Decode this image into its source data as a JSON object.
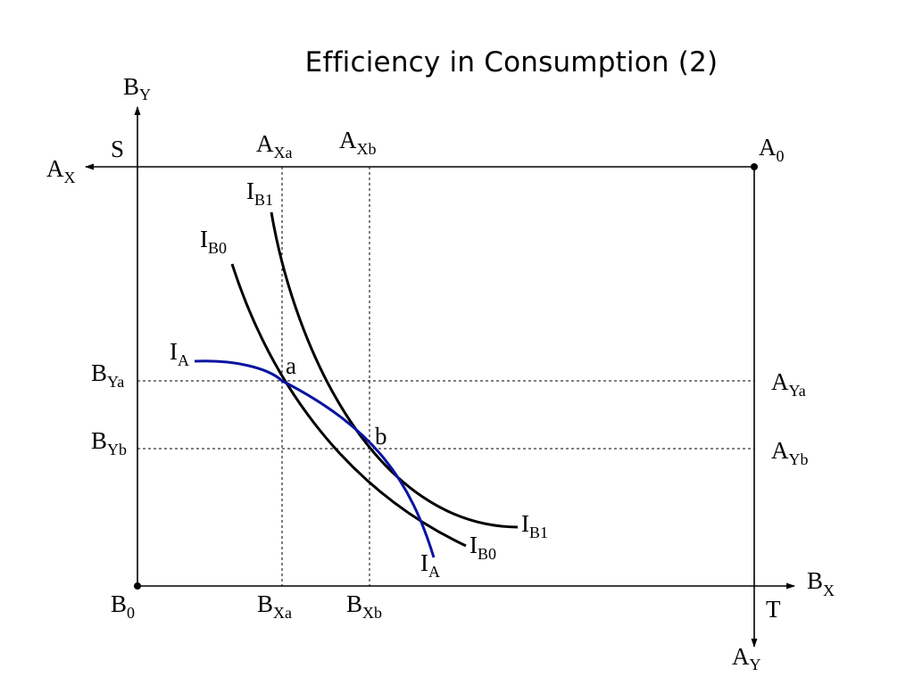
{
  "title": "Efficiency in Consumption (2)",
  "labels": {
    "by_axis": {
      "main": "B",
      "sub": "Y"
    },
    "ax_axis": {
      "main": "A",
      "sub": "X"
    },
    "bx_axis": {
      "main": "B",
      "sub": "X"
    },
    "ay_axis": {
      "main": "A",
      "sub": "Y"
    },
    "s": "S",
    "t": "T",
    "a0": {
      "main": "A",
      "sub": "0"
    },
    "b0": {
      "main": "B",
      "sub": "0"
    },
    "axa": {
      "main": "A",
      "sub": "Xa"
    },
    "axb": {
      "main": "A",
      "sub": "Xb"
    },
    "bxa": {
      "main": "B",
      "sub": "Xa"
    },
    "bxb": {
      "main": "B",
      "sub": "Xb"
    },
    "bya": {
      "main": "B",
      "sub": "Ya"
    },
    "byb": {
      "main": "B",
      "sub": "Yb"
    },
    "aya": {
      "main": "A",
      "sub": "Ya"
    },
    "ayb": {
      "main": "A",
      "sub": "Yb"
    },
    "point_a": "a",
    "point_b": "b",
    "ib1_top": {
      "main": "I",
      "sub": "B1"
    },
    "ib0_top": {
      "main": "I",
      "sub": "B0"
    },
    "ia_top": {
      "main": "I",
      "sub": "A"
    },
    "ib1_bottom": {
      "main": "I",
      "sub": "B1"
    },
    "ib0_bottom": {
      "main": "I",
      "sub": "B0"
    },
    "ia_bottom": {
      "main": "I",
      "sub": "A"
    }
  },
  "colors": {
    "axis": "#000000",
    "indifference_b": "#000000",
    "indifference_a": "#0a14a0",
    "guide": "#000000"
  }
}
